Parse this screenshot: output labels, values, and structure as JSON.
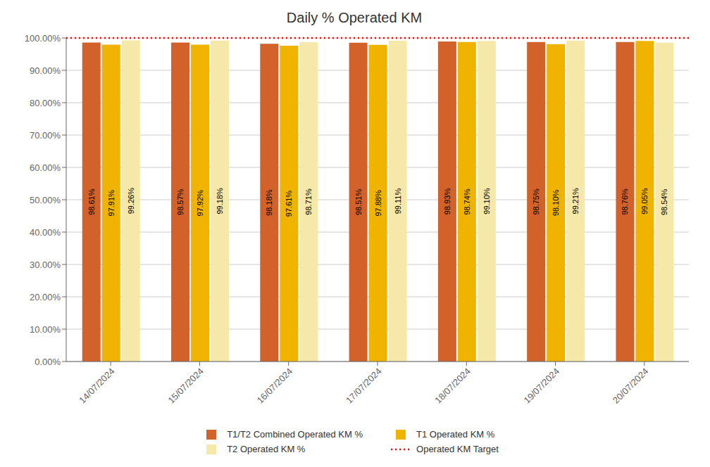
{
  "chart_data": {
    "type": "bar",
    "title": "Daily % Operated KM",
    "categories": [
      "14/07/2024",
      "15/07/2024",
      "16/07/2024",
      "17/07/2024",
      "18/07/2024",
      "19/07/2024",
      "20/07/2024"
    ],
    "series": [
      {
        "name": "T1/T2 Combined Operated KM %",
        "color": "#D2622A",
        "values": [
          98.61,
          98.57,
          98.18,
          98.51,
          98.93,
          98.75,
          98.76
        ],
        "value_labels": [
          "98.61%",
          "98.57%",
          "98.18%",
          "98.51%",
          "98.93%",
          "98.75%",
          "98.76%"
        ]
      },
      {
        "name": "T1 Operated KM %",
        "color": "#F0B400",
        "values": [
          97.91,
          97.92,
          97.61,
          97.88,
          98.74,
          98.1,
          99.05
        ],
        "value_labels": [
          "97.91%",
          "97.92%",
          "97.61%",
          "97.88%",
          "98.74%",
          "98.10%",
          "99.05%"
        ]
      },
      {
        "name": "T2 Operated KM %",
        "color": "#F5E8A8",
        "values": [
          99.26,
          99.18,
          98.71,
          99.11,
          99.1,
          99.21,
          98.54
        ],
        "value_labels": [
          "99.26%",
          "99.18%",
          "98.71%",
          "99.11%",
          "99.10%",
          "99.21%",
          "98.54%"
        ]
      }
    ],
    "reference_lines": [
      {
        "value": 100.0,
        "label": "Operated KM Target",
        "color": "#FF0000",
        "line_style": "dotted"
      }
    ],
    "ylim": [
      0,
      100
    ],
    "yticks": [
      {
        "value": 0,
        "label": "0.00%"
      },
      {
        "value": 10,
        "label": "10.00%"
      },
      {
        "value": 20,
        "label": "20.00%"
      },
      {
        "value": 30,
        "label": "30.00%"
      },
      {
        "value": 40,
        "label": "40.00%"
      },
      {
        "value": 50,
        "label": "50.00%"
      },
      {
        "value": 60,
        "label": "60.00%"
      },
      {
        "value": 70,
        "label": "70.00%"
      },
      {
        "value": 80,
        "label": "80.00%"
      },
      {
        "value": 90,
        "label": "90.00%"
      },
      {
        "value": 100,
        "label": "100.00%"
      }
    ],
    "grid": true,
    "legend": "bottom",
    "data_labels": true
  }
}
